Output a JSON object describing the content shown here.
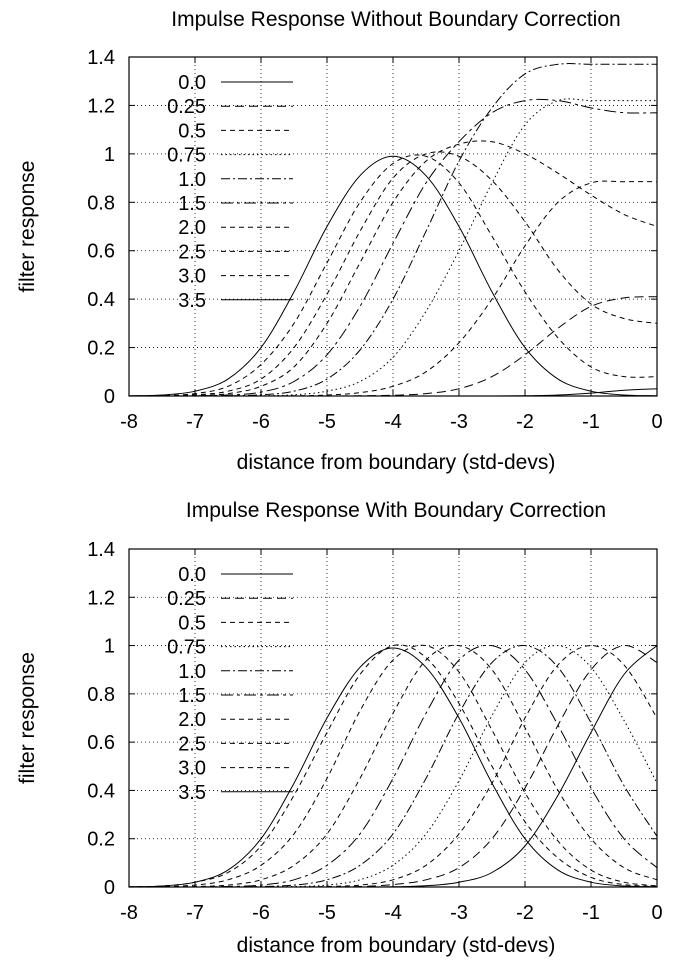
{
  "chart_data": [
    {
      "type": "line",
      "title": "Impulse Response Without Boundary Correction",
      "xlabel": "distance from boundary (std-devs)",
      "ylabel": "filter response",
      "xlim": [
        -8,
        0
      ],
      "ylim": [
        0,
        1.4
      ],
      "x_ticks": [
        "-8",
        "-7",
        "-6",
        "-5",
        "-4",
        "-3",
        "-2",
        "-1",
        "0"
      ],
      "y_ticks": [
        "0",
        "0.2",
        "0.4",
        "0.6",
        "0.8",
        "1",
        "1.2",
        "1.4"
      ],
      "grid": true,
      "legend_position": "top-left",
      "x": [
        -8,
        -7.5,
        -7,
        -6.5,
        -6,
        -5.5,
        -5,
        -4.5,
        -4,
        -3.5,
        -3,
        -2.5,
        -2,
        -1.5,
        -1,
        -0.5,
        0
      ],
      "series": [
        {
          "name": "0.0",
          "dash": "solid",
          "values": [
            0,
            0,
            0,
            0,
            0,
            0,
            0,
            0,
            0,
            0,
            0,
            0,
            0.001,
            0.004,
            0.012,
            0.024,
            0.03
          ]
        },
        {
          "name": "0.25",
          "dash": "long",
          "values": [
            0,
            0,
            0,
            0,
            0,
            0,
            0,
            0.001,
            0.003,
            0.01,
            0.03,
            0.08,
            0.17,
            0.28,
            0.37,
            0.405,
            0.41
          ]
        },
        {
          "name": "0.5",
          "dash": "short",
          "values": [
            0,
            0,
            0,
            0,
            0,
            0.001,
            0.004,
            0.014,
            0.04,
            0.1,
            0.22,
            0.4,
            0.62,
            0.8,
            0.88,
            0.885,
            0.885
          ]
        },
        {
          "name": "0.75",
          "dash": "dotted",
          "values": [
            0,
            0,
            0,
            0,
            0.001,
            0.005,
            0.02,
            0.06,
            0.16,
            0.35,
            0.6,
            0.88,
            1.12,
            1.22,
            1.22,
            1.22,
            1.22
          ]
        },
        {
          "name": "1.0",
          "dash": "dashdot",
          "values": [
            0,
            0,
            0,
            0.001,
            0.005,
            0.02,
            0.07,
            0.19,
            0.4,
            0.68,
            0.97,
            1.19,
            1.33,
            1.37,
            1.37,
            1.37,
            1.37
          ]
        },
        {
          "name": "1.5",
          "dash": "dashdot-long",
          "values": [
            0,
            0,
            0.001,
            0.004,
            0.016,
            0.06,
            0.17,
            0.37,
            0.63,
            0.88,
            1.05,
            1.17,
            1.22,
            1.22,
            1.19,
            1.17,
            1.17
          ]
        },
        {
          "name": "2.0",
          "dash": "short",
          "values": [
            0,
            0,
            0.002,
            0.01,
            0.04,
            0.12,
            0.3,
            0.55,
            0.8,
            0.97,
            1.04,
            1.05,
            1.0,
            0.92,
            0.83,
            0.75,
            0.7
          ]
        },
        {
          "name": "2.5",
          "dash": "short",
          "values": [
            0,
            0.001,
            0.005,
            0.02,
            0.07,
            0.2,
            0.42,
            0.68,
            0.9,
            1.0,
            0.99,
            0.89,
            0.72,
            0.52,
            0.38,
            0.32,
            0.3
          ]
        },
        {
          "name": "3.0",
          "dash": "short",
          "values": [
            0,
            0.002,
            0.01,
            0.04,
            0.13,
            0.3,
            0.55,
            0.8,
            0.96,
            0.99,
            0.88,
            0.66,
            0.43,
            0.24,
            0.12,
            0.08,
            0.08
          ]
        },
        {
          "name": "3.5",
          "dash": "solid",
          "values": [
            0.001,
            0.004,
            0.02,
            0.07,
            0.2,
            0.43,
            0.7,
            0.91,
            0.99,
            0.91,
            0.7,
            0.43,
            0.2,
            0.07,
            0.02,
            0.004,
            0.001
          ]
        }
      ]
    },
    {
      "type": "line",
      "title": "Impulse Response With Boundary Correction",
      "xlabel": "distance from boundary (std-devs)",
      "ylabel": "filter response",
      "xlim": [
        -8,
        0
      ],
      "ylim": [
        0,
        1.4
      ],
      "x_ticks": [
        "-8",
        "-7",
        "-6",
        "-5",
        "-4",
        "-3",
        "-2",
        "-1",
        "0"
      ],
      "y_ticks": [
        "0",
        "0.2",
        "0.4",
        "0.6",
        "0.8",
        "1",
        "1.2",
        "1.4"
      ],
      "grid": true,
      "legend_position": "top-left",
      "x": [
        -8,
        -7.5,
        -7,
        -6.5,
        -6,
        -5.5,
        -5,
        -4.5,
        -4,
        -3.5,
        -3,
        -2.5,
        -2,
        -1.5,
        -1,
        -0.5,
        0
      ],
      "series": [
        {
          "name": "0.0",
          "dash": "solid",
          "values": [
            0,
            0,
            0,
            0,
            0,
            0,
            0,
            0,
            0.001,
            0.005,
            0.02,
            0.06,
            0.17,
            0.38,
            0.64,
            0.88,
            1.0
          ]
        },
        {
          "name": "0.25",
          "dash": "long",
          "values": [
            0,
            0,
            0,
            0,
            0,
            0,
            0,
            0.002,
            0.01,
            0.03,
            0.08,
            0.2,
            0.41,
            0.67,
            0.9,
            1.0,
            0.93
          ]
        },
        {
          "name": "0.5",
          "dash": "short",
          "values": [
            0,
            0,
            0,
            0,
            0,
            0,
            0.002,
            0.008,
            0.03,
            0.09,
            0.22,
            0.43,
            0.7,
            0.92,
            1.0,
            0.92,
            0.7
          ]
        },
        {
          "name": "0.75",
          "dash": "dotted",
          "values": [
            0,
            0,
            0,
            0,
            0,
            0.002,
            0.008,
            0.03,
            0.09,
            0.22,
            0.44,
            0.71,
            0.93,
            1.0,
            0.91,
            0.69,
            0.43
          ]
        },
        {
          "name": "1.0",
          "dash": "dashdot",
          "values": [
            0,
            0,
            0,
            0,
            0.002,
            0.008,
            0.03,
            0.09,
            0.22,
            0.45,
            0.72,
            0.93,
            1.0,
            0.91,
            0.68,
            0.42,
            0.21
          ]
        },
        {
          "name": "1.5",
          "dash": "dashdot-long",
          "values": [
            0,
            0,
            0,
            0.002,
            0.008,
            0.03,
            0.09,
            0.22,
            0.45,
            0.72,
            0.94,
            1.0,
            0.9,
            0.67,
            0.41,
            0.2,
            0.08
          ]
        },
        {
          "name": "2.0",
          "dash": "short",
          "values": [
            0,
            0,
            0.002,
            0.008,
            0.03,
            0.09,
            0.22,
            0.45,
            0.72,
            0.94,
            1.0,
            0.9,
            0.66,
            0.4,
            0.2,
            0.08,
            0.03
          ]
        },
        {
          "name": "2.5",
          "dash": "short",
          "values": [
            0,
            0.002,
            0.008,
            0.03,
            0.09,
            0.22,
            0.45,
            0.73,
            0.94,
            1.0,
            0.89,
            0.65,
            0.39,
            0.19,
            0.07,
            0.02,
            0.005
          ]
        },
        {
          "name": "3.0",
          "dash": "short",
          "values": [
            0.001,
            0.004,
            0.02,
            0.06,
            0.17,
            0.38,
            0.64,
            0.88,
            1.0,
            0.95,
            0.76,
            0.5,
            0.27,
            0.12,
            0.04,
            0.01,
            0.002
          ]
        },
        {
          "name": "3.5",
          "dash": "solid",
          "values": [
            0.001,
            0.004,
            0.02,
            0.07,
            0.2,
            0.43,
            0.7,
            0.91,
            0.99,
            0.91,
            0.7,
            0.43,
            0.2,
            0.07,
            0.02,
            0.004,
            0.001
          ]
        }
      ]
    }
  ]
}
